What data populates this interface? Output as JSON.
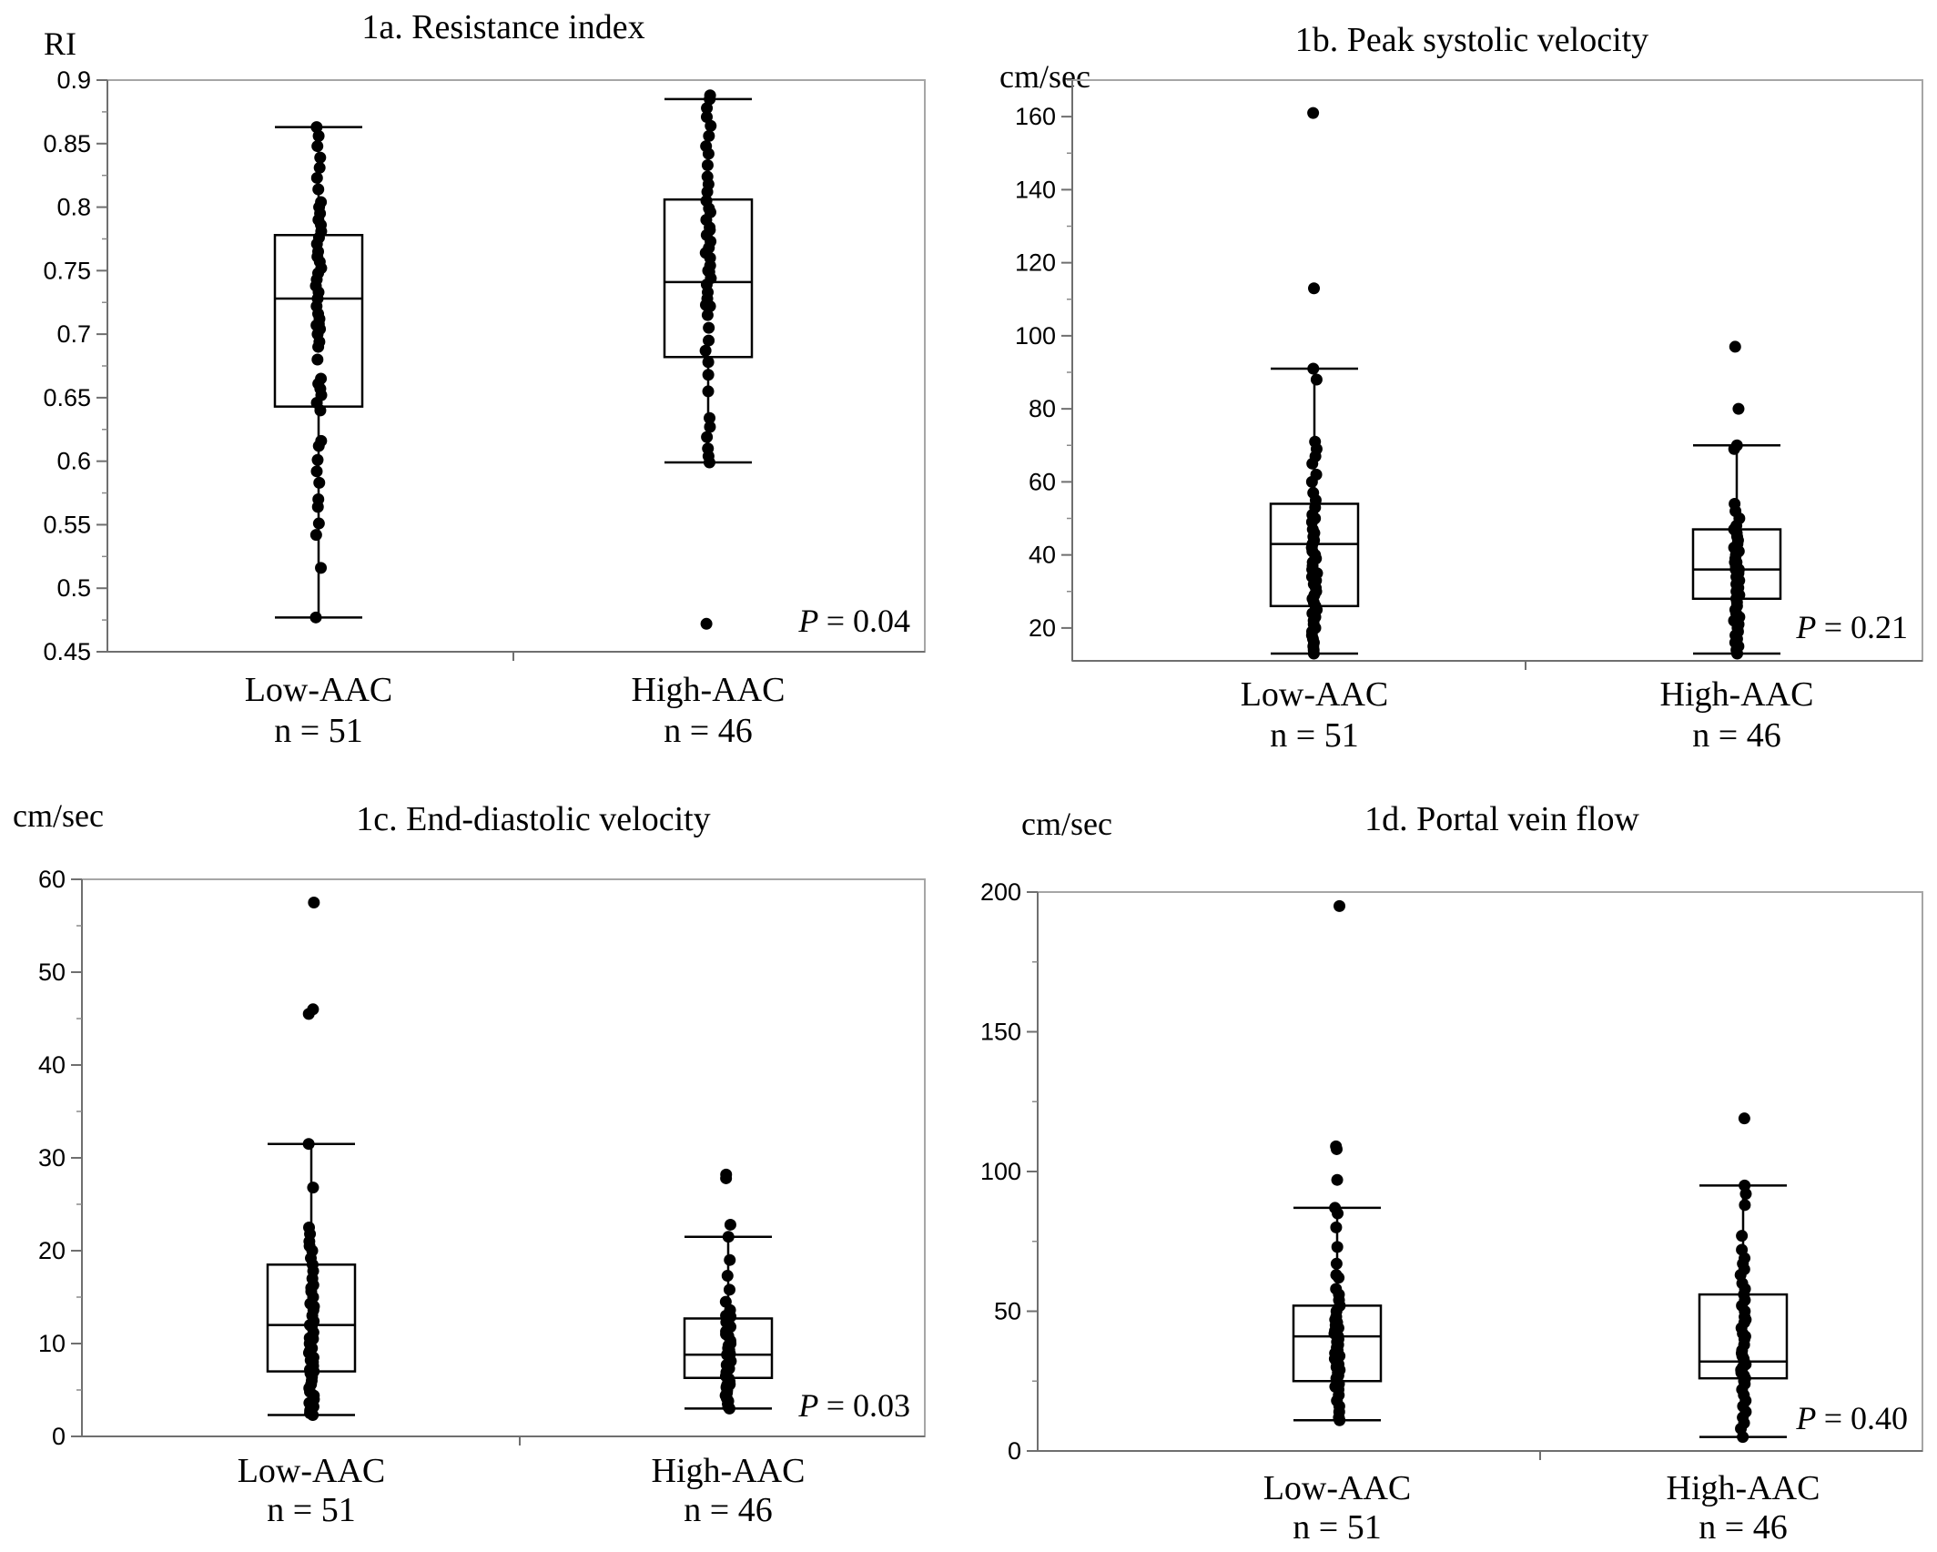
{
  "chart_data": [
    {
      "type": "box",
      "title": "1a. Resistance index",
      "ylabel": "RI",
      "ylim": [
        0.45,
        0.9
      ],
      "yticks": [
        "0.45",
        "0.5",
        "0.55",
        "0.6",
        "0.65",
        "0.7",
        "0.75",
        "0.8",
        "0.85",
        "0.9"
      ],
      "categories": [
        "Low-AAC",
        "High-AAC"
      ],
      "ns": [
        "n = 51",
        "n = 46"
      ],
      "p_label": "P",
      "p_value": "= 0.04",
      "series": [
        {
          "whisker_low": 0.477,
          "q1": 0.643,
          "median": 0.728,
          "q3": 0.778,
          "whisker_high": 0.863,
          "points": [
            0.477,
            0.516,
            0.542,
            0.551,
            0.564,
            0.57,
            0.583,
            0.592,
            0.601,
            0.612,
            0.616,
            0.64,
            0.646,
            0.652,
            0.657,
            0.661,
            0.665,
            0.69,
            0.694,
            0.7,
            0.704,
            0.708,
            0.712,
            0.716,
            0.722,
            0.728,
            0.733,
            0.738,
            0.743,
            0.748,
            0.752,
            0.757,
            0.761,
            0.765,
            0.771,
            0.776,
            0.781,
            0.786,
            0.79,
            0.795,
            0.8,
            0.804,
            0.814,
            0.823,
            0.831,
            0.839,
            0.848,
            0.856,
            0.863,
            0.707,
            0.68
          ]
        },
        {
          "whisker_low": 0.599,
          "q1": 0.682,
          "median": 0.741,
          "q3": 0.806,
          "whisker_high": 0.885,
          "points": [
            0.472,
            0.599,
            0.604,
            0.61,
            0.619,
            0.627,
            0.634,
            0.655,
            0.668,
            0.678,
            0.687,
            0.695,
            0.705,
            0.715,
            0.722,
            0.728,
            0.733,
            0.739,
            0.744,
            0.749,
            0.754,
            0.76,
            0.764,
            0.768,
            0.773,
            0.778,
            0.784,
            0.79,
            0.796,
            0.805,
            0.812,
            0.818,
            0.824,
            0.833,
            0.842,
            0.848,
            0.856,
            0.864,
            0.871,
            0.878,
            0.885,
            0.888,
            0.799,
            0.723,
            0.75,
            0.782
          ]
        }
      ]
    },
    {
      "type": "box",
      "title": "1b. Peak systolic velocity",
      "ylabel": "cm/sec",
      "ylim": [
        11,
        170
      ],
      "yticks": [
        "20",
        "40",
        "60",
        "80",
        "100",
        "120",
        "140",
        "160"
      ],
      "categories": [
        "Low-AAC",
        "High-AAC"
      ],
      "ns": [
        "n = 51",
        "n = 46"
      ],
      "p_label": "P",
      "p_value": "= 0.21",
      "series": [
        {
          "whisker_low": 13,
          "q1": 26,
          "median": 43,
          "q3": 54,
          "whisker_high": 91,
          "points": [
            161,
            113,
            91,
            88,
            71,
            69,
            67,
            65,
            62,
            60,
            57,
            55,
            53,
            51,
            49,
            47,
            46,
            44,
            43,
            42,
            41,
            40,
            39,
            38,
            37,
            36,
            35,
            34,
            33,
            32,
            31,
            30,
            29,
            28,
            27,
            26,
            25,
            24,
            23,
            22,
            21,
            20,
            19,
            18,
            17,
            16,
            15,
            14,
            13,
            50,
            45
          ]
        },
        {
          "whisker_low": 13,
          "q1": 28,
          "median": 36,
          "q3": 47,
          "whisker_high": 70,
          "points": [
            97,
            80,
            70,
            69,
            54,
            52,
            50,
            48,
            47,
            46,
            45,
            44,
            43,
            42,
            41,
            40,
            39,
            38,
            37,
            36,
            35,
            34,
            33,
            32,
            31,
            30,
            29,
            28,
            27,
            26,
            25,
            24,
            23,
            22,
            21,
            20,
            19,
            18,
            17,
            16,
            15,
            14,
            13,
            36,
            38,
            41
          ]
        }
      ]
    },
    {
      "type": "box",
      "title": "1c. End-diastolic velocity",
      "ylabel": "cm/sec",
      "ylim": [
        0,
        60
      ],
      "yticks": [
        "0",
        "10",
        "20",
        "30",
        "40",
        "50",
        "60"
      ],
      "categories": [
        "Low-AAC",
        "High-AAC"
      ],
      "ns": [
        "n = 51",
        "n = 46"
      ],
      "p_label": "P",
      "p_value": "= 0.03",
      "series": [
        {
          "whisker_low": 2.3,
          "q1": 7,
          "median": 12,
          "q3": 18.5,
          "whisker_high": 31.5,
          "points": [
            57.5,
            46,
            45.5,
            31.5,
            26.8,
            22.5,
            21.8,
            21,
            20,
            19.2,
            18.5,
            17.8,
            17,
            16.3,
            15.6,
            15,
            14.3,
            13.6,
            13,
            12.4,
            11.8,
            11.2,
            10.6,
            10,
            9.5,
            9,
            8.5,
            8,
            7.6,
            7.2,
            6.8,
            6.4,
            6,
            5.6,
            5.2,
            4.8,
            4.4,
            4,
            3.6,
            3.2,
            2.8,
            2.5,
            2.3,
            12,
            14,
            10.5,
            9.2,
            8.2,
            7,
            16,
            20.5
          ]
        },
        {
          "whisker_low": 3,
          "q1": 6.3,
          "median": 8.8,
          "q3": 12.7,
          "whisker_high": 21.5,
          "points": [
            28.2,
            27.8,
            22.8,
            21.5,
            19,
            17.3,
            15.8,
            14.5,
            13.6,
            12.9,
            12.3,
            11.8,
            11.3,
            10.8,
            10.3,
            9.8,
            9.3,
            8.9,
            8.5,
            8.1,
            7.7,
            7.3,
            6.9,
            6.5,
            6.2,
            5.9,
            5.6,
            5.3,
            5,
            4.7,
            4.4,
            4.1,
            3.8,
            3.5,
            3.2,
            3,
            8.8,
            10,
            11,
            9.5,
            7.5,
            6,
            12,
            13,
            5.5,
            4.5
          ]
        }
      ]
    },
    {
      "type": "box",
      "title": "1d. Portal vein flow",
      "ylabel": "cm/sec",
      "ylim": [
        0,
        200
      ],
      "yticks": [
        "0",
        "50",
        "100",
        "150",
        "200"
      ],
      "categories": [
        "Low-AAC",
        "High-AAC"
      ],
      "ns": [
        "n = 51",
        "n = 46"
      ],
      "p_label": "P",
      "p_value": "= 0.40",
      "series": [
        {
          "whisker_low": 11,
          "q1": 25,
          "median": 41,
          "q3": 52,
          "whisker_high": 87,
          "points": [
            195,
            109,
            108,
            97,
            87,
            85,
            80,
            73,
            67,
            63,
            62,
            58,
            56,
            54,
            52,
            50,
            48,
            47,
            45,
            44,
            43,
            42,
            41,
            40,
            39,
            38,
            37,
            36,
            35,
            34,
            33,
            32,
            31,
            30,
            29,
            28,
            27,
            26,
            25,
            24,
            23,
            22,
            20,
            18,
            16,
            14,
            12,
            11,
            46,
            38,
            33
          ]
        },
        {
          "whisker_low": 5,
          "q1": 26,
          "median": 32,
          "q3": 56,
          "whisker_high": 95,
          "points": [
            119,
            95,
            92,
            88,
            77,
            72,
            69,
            67,
            65,
            63,
            60,
            58,
            56,
            54,
            52,
            50,
            48,
            46,
            44,
            42,
            40,
            38,
            36,
            34,
            33,
            32,
            31,
            30,
            29,
            28,
            27,
            26,
            25,
            24,
            22,
            20,
            18,
            16,
            14,
            12,
            10,
            8,
            5,
            35,
            41,
            47
          ]
        }
      ]
    }
  ]
}
